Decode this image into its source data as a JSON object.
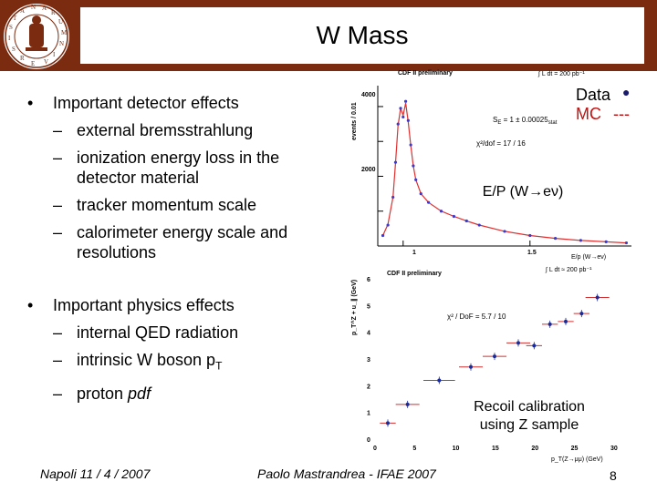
{
  "slide": {
    "title": "W Mass",
    "detector_heading": "Important detector effects",
    "detector_items": [
      "external bremsstrahlung",
      "ionization energy loss in the detector material",
      "tracker momentum scale",
      "calorimeter energy scale and resolutions"
    ],
    "physics_heading": "Important physics effects",
    "physics_items": [
      "internal QED radiation",
      "intrinsic W boson p",
      "proton "
    ],
    "physics_sub": "T",
    "physics_italic": "pdf",
    "dash": "–"
  },
  "ep_plot": {
    "header": "CDF II preliminary",
    "lumi": "∫ L dt = 200 pb⁻¹",
    "ylabel": "events / 0.01",
    "y_ticks": [
      "4000",
      "2000"
    ],
    "x_ticks": [
      "1",
      "1.5"
    ],
    "xlabel": "E/p (W→eν)",
    "se_label": "S",
    "se_sub": "E",
    "se_value": " = 1 ± 0.00025",
    "se_stat": "stat",
    "chi2": "χ²/dof = 17 / 16",
    "legend_data": "Data",
    "legend_mc": "MC",
    "legend_mc_marker": "---",
    "caption": "E/P (W→eν)",
    "data_color": "#3a3acc",
    "mc_color": "#e03030"
  },
  "recoil_plot": {
    "header": "CDF II preliminary",
    "lumi": "∫ L dt ≈ 200 pb⁻¹",
    "ylabel": "p_T^Z + u_∥ (GeV)",
    "xlabel": "p_T(Z→μμ) (GeV)",
    "y_ticks": [
      "6",
      "5",
      "4",
      "3",
      "2",
      "1",
      "0"
    ],
    "x_ticks": [
      "0",
      "5",
      "10",
      "15",
      "20",
      "25",
      "30"
    ],
    "chi2": "χ² / DoF = 5.7 / 10",
    "caption_line1": "Recoil calibration",
    "caption_line2": "using Z sample",
    "point_color": "#1a2a9a",
    "bar_color": "#d03030"
  },
  "chart_data": [
    {
      "type": "scatter",
      "title": "CDF II preliminary",
      "xlabel": "E/p (W→eν)",
      "ylabel": "events / 0.01",
      "xlim": [
        0.9,
        1.9
      ],
      "ylim": [
        0,
        4600
      ],
      "series": [
        {
          "name": "Data",
          "x": [
            0.92,
            0.94,
            0.96,
            0.97,
            0.98,
            0.99,
            1.0,
            1.01,
            1.02,
            1.03,
            1.04,
            1.05,
            1.07,
            1.1,
            1.15,
            1.2,
            1.25,
            1.3,
            1.4,
            1.5,
            1.6,
            1.7,
            1.8,
            1.88
          ],
          "y": [
            300,
            600,
            1400,
            2400,
            3500,
            3950,
            3700,
            4150,
            3600,
            2900,
            2300,
            1900,
            1500,
            1250,
            1000,
            850,
            720,
            600,
            420,
            300,
            220,
            160,
            120,
            90
          ]
        },
        {
          "name": "MC",
          "x": [
            0.92,
            0.94,
            0.96,
            0.97,
            0.98,
            0.99,
            1.0,
            1.01,
            1.02,
            1.03,
            1.04,
            1.05,
            1.07,
            1.1,
            1.15,
            1.2,
            1.25,
            1.3,
            1.4,
            1.5,
            1.6,
            1.7,
            1.8,
            1.88
          ],
          "y": [
            300,
            620,
            1400,
            2400,
            3450,
            3950,
            3750,
            4100,
            3550,
            2900,
            2300,
            1900,
            1500,
            1250,
            1000,
            850,
            720,
            600,
            420,
            300,
            220,
            160,
            120,
            90
          ]
        }
      ]
    },
    {
      "type": "scatter",
      "title": "CDF II preliminary",
      "xlabel": "p_T(Z→μμ) (GeV)",
      "ylabel": "p_T^Z + u_∥ (GeV)",
      "xlim": [
        0,
        30
      ],
      "ylim": [
        0,
        6
      ],
      "series": [
        {
          "name": "Data",
          "x": [
            1.5,
            4,
            8,
            12,
            15,
            18,
            20,
            22,
            24,
            26,
            28
          ],
          "y": [
            0.6,
            1.3,
            2.2,
            2.7,
            3.1,
            3.6,
            3.5,
            4.3,
            4.4,
            4.7,
            5.3
          ],
          "x_err": [
            1,
            1.5,
            2,
            1.5,
            1.5,
            1.5,
            1,
            1,
            1,
            1,
            1.5
          ]
        }
      ]
    }
  ],
  "footer": {
    "left": "Napoli 11 / 4 / 2007",
    "center": "Paolo Mastrandrea - IFAE 2007",
    "page": "8"
  }
}
